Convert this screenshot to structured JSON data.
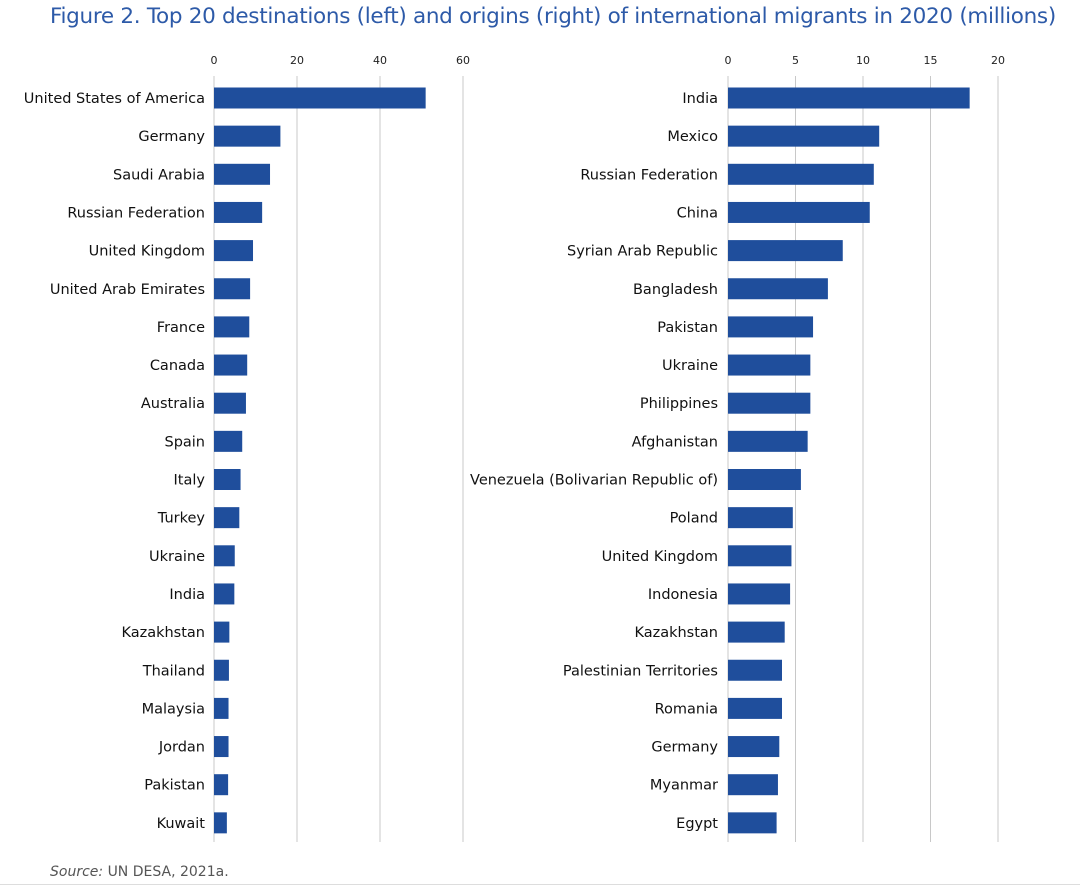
{
  "title": "Figure 2. Top 20 destinations (left) and origins (right) of international migrants in 2020 (millions)",
  "source": {
    "prefix": "Source:",
    "text": "UN DESA, 2021a."
  },
  "colors": {
    "bar": "#1f4e9c",
    "title": "#2d5aa8",
    "grid": "#c8c8c8"
  },
  "chart_data": [
    {
      "type": "bar",
      "orientation": "horizontal",
      "title": "Top 20 destinations",
      "unit": "millions",
      "xlim": [
        0,
        60
      ],
      "ticks": [
        0,
        20,
        40,
        60
      ],
      "grid": true,
      "categories": [
        "United States of America",
        "Germany",
        "Saudi Arabia",
        "Russian Federation",
        "United Kingdom",
        "United Arab Emirates",
        "France",
        "Canada",
        "Australia",
        "Spain",
        "Italy",
        "Turkey",
        "Ukraine",
        "India",
        "Kazakhstan",
        "Thailand",
        "Malaysia",
        "Jordan",
        "Pakistan",
        "Kuwait"
      ],
      "values": [
        51,
        16,
        13.5,
        11.6,
        9.4,
        8.7,
        8.5,
        8.0,
        7.7,
        6.8,
        6.4,
        6.1,
        5.0,
        4.9,
        3.7,
        3.6,
        3.5,
        3.5,
        3.4,
        3.1
      ]
    },
    {
      "type": "bar",
      "orientation": "horizontal",
      "title": "Top 20 origins",
      "unit": "millions",
      "xlim": [
        0,
        20
      ],
      "ticks": [
        0,
        5,
        10,
        15,
        20
      ],
      "grid": true,
      "categories": [
        "India",
        "Mexico",
        "Russian Federation",
        "China",
        "Syrian Arab Republic",
        "Bangladesh",
        "Pakistan",
        "Ukraine",
        "Philippines",
        "Afghanistan",
        "Venezuela (Bolivarian Republic of)",
        "Poland",
        "United Kingdom",
        "Indonesia",
        "Kazakhstan",
        "Palestinian Territories",
        "Romania",
        "Germany",
        "Myanmar",
        "Egypt"
      ],
      "values": [
        17.9,
        11.2,
        10.8,
        10.5,
        8.5,
        7.4,
        6.3,
        6.1,
        6.1,
        5.9,
        5.4,
        4.8,
        4.7,
        4.6,
        4.2,
        4.0,
        4.0,
        3.8,
        3.7,
        3.6
      ]
    }
  ]
}
